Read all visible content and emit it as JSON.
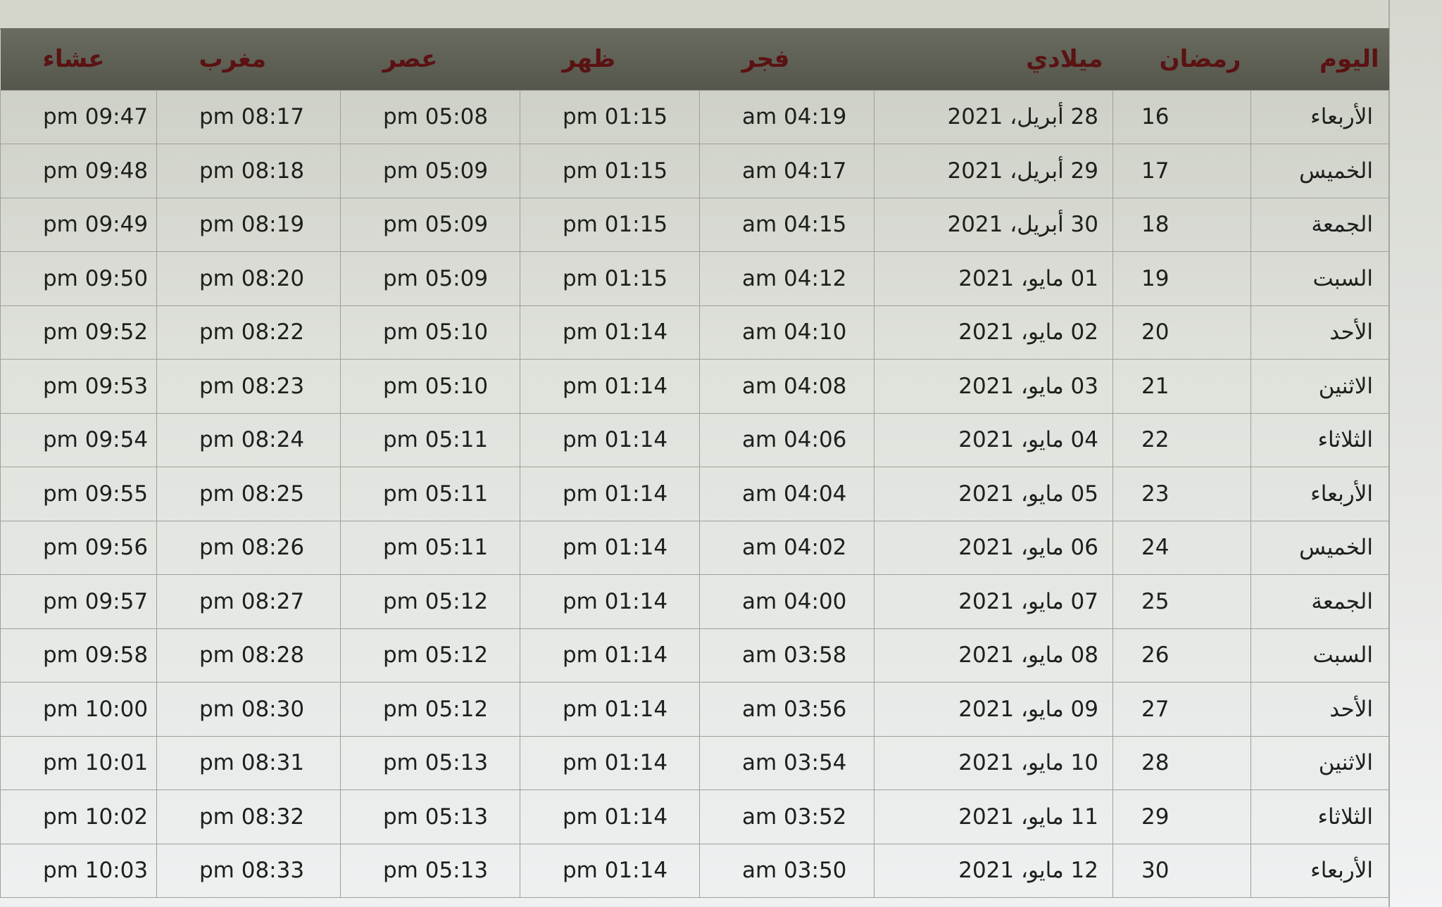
{
  "table": {
    "headers": [
      "اليوم",
      "رمضان",
      "ميلادي",
      "فجر",
      "ظهر",
      "عصر",
      "مغرب",
      "عشاء"
    ],
    "rows": [
      [
        "الأربعاء",
        "16",
        "28 أبريل، 2021",
        "am 04:19",
        "pm 01:15",
        "pm 05:08",
        "pm 08:17",
        "pm 09:47"
      ],
      [
        "الخميس",
        "17",
        "29 أبريل، 2021",
        "am 04:17",
        "pm 01:15",
        "pm 05:09",
        "pm 08:18",
        "pm 09:48"
      ],
      [
        "الجمعة",
        "18",
        "30 أبريل، 2021",
        "am 04:15",
        "pm 01:15",
        "pm 05:09",
        "pm 08:19",
        "pm 09:49"
      ],
      [
        "السبت",
        "19",
        "01 مايو، 2021",
        "am 04:12",
        "pm 01:15",
        "pm 05:09",
        "pm 08:20",
        "pm 09:50"
      ],
      [
        "الأحد",
        "20",
        "02 مايو، 2021",
        "am 04:10",
        "pm 01:14",
        "pm 05:10",
        "pm 08:22",
        "pm 09:52"
      ],
      [
        "الاثنين",
        "21",
        "03 مايو، 2021",
        "am 04:08",
        "pm 01:14",
        "pm 05:10",
        "pm 08:23",
        "pm 09:53"
      ],
      [
        "الثلاثاء",
        "22",
        "04 مايو، 2021",
        "am 04:06",
        "pm 01:14",
        "pm 05:11",
        "pm 08:24",
        "pm 09:54"
      ],
      [
        "الأربعاء",
        "23",
        "05 مايو، 2021",
        "am 04:04",
        "pm 01:14",
        "pm 05:11",
        "pm 08:25",
        "pm 09:55"
      ],
      [
        "الخميس",
        "24",
        "06 مايو، 2021",
        "am 04:02",
        "pm 01:14",
        "pm 05:11",
        "pm 08:26",
        "pm 09:56"
      ],
      [
        "الجمعة",
        "25",
        "07 مايو، 2021",
        "am 04:00",
        "pm 01:14",
        "pm 05:12",
        "pm 08:27",
        "pm 09:57"
      ],
      [
        "السبت",
        "26",
        "08 مايو، 2021",
        "am 03:58",
        "pm 01:14",
        "pm 05:12",
        "pm 08:28",
        "pm 09:58"
      ],
      [
        "الأحد",
        "27",
        "09 مايو، 2021",
        "am 03:56",
        "pm 01:14",
        "pm 05:12",
        "pm 08:30",
        "pm 10:00"
      ],
      [
        "الاثنين",
        "28",
        "10 مايو، 2021",
        "am 03:54",
        "pm 01:14",
        "pm 05:13",
        "pm 08:31",
        "pm 10:01"
      ],
      [
        "الثلاثاء",
        "29",
        "11 مايو، 2021",
        "am 03:52",
        "pm 01:14",
        "pm 05:13",
        "pm 08:32",
        "pm 10:02"
      ],
      [
        "الأربعاء",
        "30",
        "12 مايو، 2021",
        "am 03:50",
        "pm 01:14",
        "pm 05:13",
        "pm 08:33",
        "pm 10:03"
      ]
    ]
  },
  "colors": {
    "header_bg": "#5f6155",
    "header_text": "#5a1212",
    "row_text": "#1d1f1d"
  }
}
